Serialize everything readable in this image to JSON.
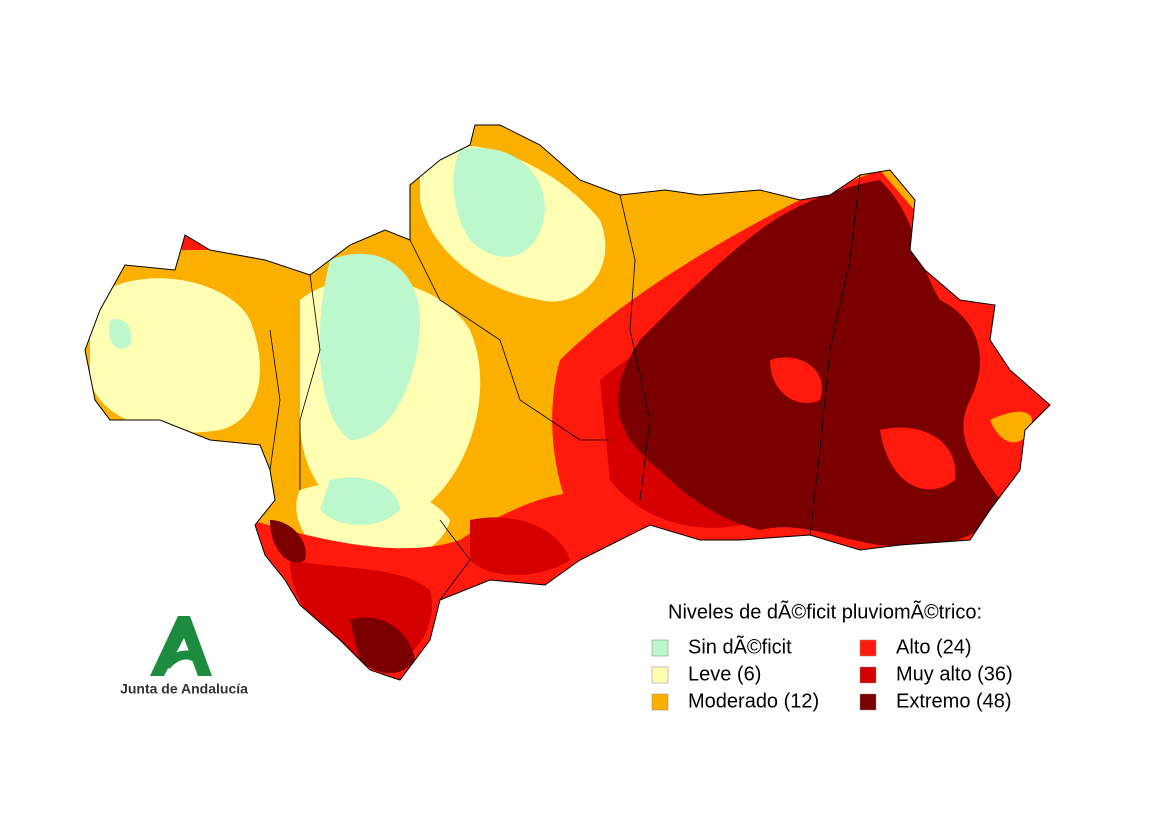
{
  "legend": {
    "title": "Niveles de dÃ©ficit pluviomÃ©trico:",
    "items": [
      {
        "label": "Sin dÃ©ficit",
        "color": "#bdf7cc"
      },
      {
        "label": "Leve (6)",
        "color": "#ffffb3"
      },
      {
        "label": "Moderado (12)",
        "color": "#fbb000"
      },
      {
        "label": "Alto (24)",
        "color": "#ff1a0d"
      },
      {
        "label": "Muy alto (36)",
        "color": "#d60000"
      },
      {
        "label": "Extremo (48)",
        "color": "#7a0000"
      }
    ]
  },
  "logo": {
    "text": "Junta de Andalucía"
  }
}
